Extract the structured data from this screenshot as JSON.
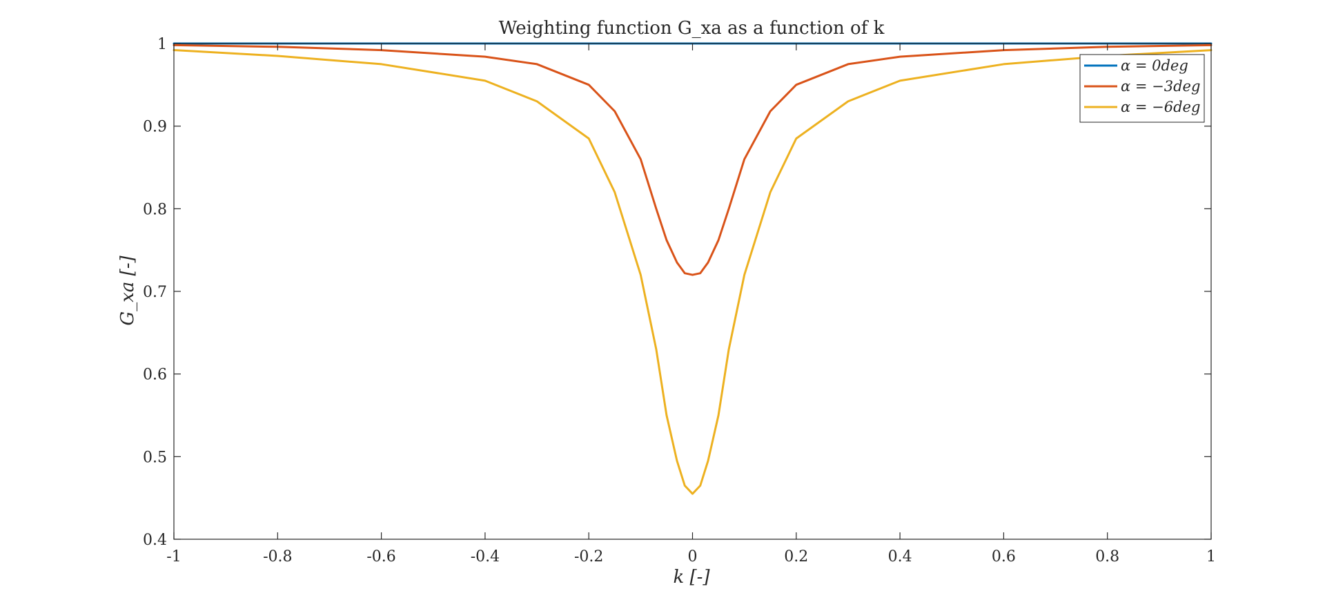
{
  "chart_data": {
    "type": "line",
    "title": "Weighting function G_xa as a function of k",
    "xlabel": "k [-]",
    "ylabel": "G_xa [-]",
    "xlim": [
      -1,
      1
    ],
    "ylim": [
      0.4,
      1
    ],
    "grid": false,
    "legend_position": "top-right",
    "x_ticks": [
      "-1",
      "-0.8",
      "-0.6",
      "-0.4",
      "-0.2",
      "0",
      "0.2",
      "0.4",
      "0.6",
      "0.8",
      "1"
    ],
    "y_ticks": [
      "0.4",
      "0.5",
      "0.6",
      "0.7",
      "0.8",
      "0.9",
      "1"
    ],
    "x": [
      -1,
      -0.8,
      -0.6,
      -0.4,
      -0.3,
      -0.2,
      -0.15,
      -0.1,
      -0.07,
      -0.05,
      -0.03,
      -0.015,
      0,
      0.015,
      0.03,
      0.05,
      0.07,
      0.1,
      0.15,
      0.2,
      0.3,
      0.4,
      0.6,
      0.8,
      1
    ],
    "series": [
      {
        "name": "α = 0deg",
        "color": "#0072bd",
        "values": [
          1,
          1,
          1,
          1,
          1,
          1,
          1,
          1,
          1,
          1,
          1,
          1,
          1,
          1,
          1,
          1,
          1,
          1,
          1,
          1,
          1,
          1,
          1,
          1,
          1
        ]
      },
      {
        "name": "α = −3deg",
        "color": "#d95319",
        "values": [
          0.998,
          0.996,
          0.992,
          0.984,
          0.975,
          0.95,
          0.918,
          0.86,
          0.8,
          0.762,
          0.735,
          0.722,
          0.72,
          0.722,
          0.735,
          0.762,
          0.8,
          0.86,
          0.918,
          0.95,
          0.975,
          0.984,
          0.992,
          0.996,
          0.998
        ]
      },
      {
        "name": "α = −6deg",
        "color": "#edb120",
        "values": [
          0.992,
          0.985,
          0.975,
          0.955,
          0.93,
          0.885,
          0.82,
          0.72,
          0.63,
          0.55,
          0.495,
          0.465,
          0.455,
          0.465,
          0.495,
          0.55,
          0.63,
          0.72,
          0.82,
          0.885,
          0.93,
          0.955,
          0.975,
          0.985,
          0.992
        ]
      }
    ]
  }
}
